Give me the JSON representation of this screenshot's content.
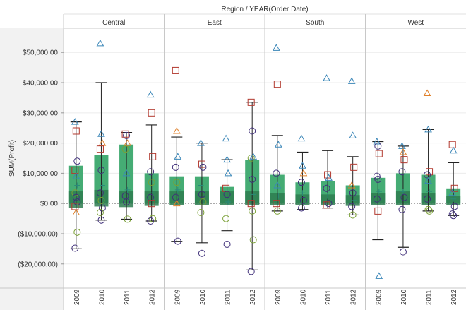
{
  "chart_data": {
    "type": "box-plot",
    "title": "Region / YEAR(Order Date)",
    "ylabel": "SUM(Profit)",
    "y_ticks": [
      {
        "value": 50000,
        "label": "$50,000.00"
      },
      {
        "value": 40000,
        "label": "$40,000.00"
      },
      {
        "value": 30000,
        "label": "$30,000.00"
      },
      {
        "value": 20000,
        "label": "$20,000.00"
      },
      {
        "value": 10000,
        "label": "$10,000.00"
      },
      {
        "value": 0,
        "label": "$0.00"
      },
      {
        "value": -10000,
        "label": "($10,000.00)"
      },
      {
        "value": -20000,
        "label": "($20,000.00)"
      }
    ],
    "ylim": [
      -28000,
      58000
    ],
    "colors": {
      "bar": "#3ba86d",
      "bar_band": "#2e7c50",
      "whisker": "#222222",
      "circle": "#40307a",
      "square": "#b2382e",
      "triangle_up": "#3a86b8",
      "triangle_down": "#e0802a",
      "diamond": "#7aa035",
      "plus": "#2a8a7a",
      "small_triangle": "#c07a3a"
    },
    "regions": [
      {
        "name": "Central",
        "years": [
          {
            "year": "2009",
            "bar": 12500,
            "band": [
              -1500,
              4000
            ],
            "whisker": [
              -15000,
              27000
            ],
            "marks": [
              [
                27000,
                "triangle_up"
              ],
              [
                24000,
                "square"
              ],
              [
                14000,
                "circle"
              ],
              [
                11000,
                "square"
              ],
              [
                9000,
                "triangle_up"
              ],
              [
                6000,
                "plus"
              ],
              [
                3500,
                "diamond"
              ],
              [
                2000,
                "circle"
              ],
              [
                500,
                "circle"
              ],
              [
                -1000,
                "square"
              ],
              [
                -3000,
                "triangle_down"
              ],
              [
                -9500,
                "diamond"
              ],
              [
                -14800,
                "circle"
              ]
            ]
          },
          {
            "year": "2010",
            "bar": 16000,
            "band": [
              -1000,
              4500
            ],
            "whisker": [
              -5500,
              40000
            ],
            "marks": [
              [
                53000,
                "triangle_up"
              ],
              [
                23000,
                "triangle_up"
              ],
              [
                20000,
                "triangle_down"
              ],
              [
                18000,
                "square"
              ],
              [
                11000,
                "circle"
              ],
              [
                6000,
                "plus"
              ],
              [
                3500,
                "circle"
              ],
              [
                1000,
                "diamond"
              ],
              [
                -1500,
                "circle"
              ],
              [
                -3000,
                "diamond"
              ],
              [
                -5500,
                "circle"
              ]
            ]
          },
          {
            "year": "2011",
            "bar": 19500,
            "band": [
              -1200,
              4000
            ],
            "whisker": [
              -5200,
              23500
            ],
            "marks": [
              [
                23000,
                "square"
              ],
              [
                22500,
                "circle"
              ],
              [
                20000,
                "triangle_down"
              ],
              [
                18000,
                "diamond"
              ],
              [
                10000,
                "triangle_up"
              ],
              [
                4500,
                "plus"
              ],
              [
                2500,
                "circle"
              ],
              [
                500,
                "circle"
              ],
              [
                -5200,
                "diamond"
              ]
            ]
          },
          {
            "year": "2012",
            "bar": 10000,
            "band": [
              -800,
              4000
            ],
            "whisker": [
              -5800,
              26000
            ],
            "marks": [
              [
                36000,
                "triangle_up"
              ],
              [
                30000,
                "square"
              ],
              [
                15500,
                "square"
              ],
              [
                10500,
                "circle"
              ],
              [
                7000,
                "diamond"
              ],
              [
                3500,
                "plus"
              ],
              [
                2000,
                "circle"
              ],
              [
                0,
                "square"
              ],
              [
                -5000,
                "diamond"
              ],
              [
                -5800,
                "circle"
              ]
            ]
          }
        ]
      },
      {
        "name": "East",
        "years": [
          {
            "year": "2009",
            "bar": 9000,
            "band": [
              -500,
              4000
            ],
            "whisker": [
              -12500,
              22000
            ],
            "marks": [
              [
                44000,
                "square"
              ],
              [
                24000,
                "triangle_down"
              ],
              [
                15500,
                "triangle_up"
              ],
              [
                12000,
                "circle"
              ],
              [
                7000,
                "diamond"
              ],
              [
                4500,
                "plus"
              ],
              [
                2000,
                "circle"
              ],
              [
                0,
                "triangle_down"
              ],
              [
                -12500,
                "circle"
              ]
            ]
          },
          {
            "year": "2010",
            "bar": 9000,
            "band": [
              -500,
              4000
            ],
            "whisker": [
              -13000,
              20000
            ],
            "marks": [
              [
                20000,
                "triangle_up"
              ],
              [
                13000,
                "square"
              ],
              [
                12000,
                "circle"
              ],
              [
                6000,
                "plus"
              ],
              [
                3000,
                "circle"
              ],
              [
                500,
                "diamond"
              ],
              [
                -3000,
                "diamond"
              ],
              [
                -16500,
                "circle"
              ]
            ]
          },
          {
            "year": "2011",
            "bar": 5500,
            "band": [
              -500,
              4000
            ],
            "whisker": [
              -9000,
              14500
            ],
            "marks": [
              [
                21500,
                "triangle_up"
              ],
              [
                14500,
                "triangle_up"
              ],
              [
                10000,
                "triangle_up"
              ],
              [
                5000,
                "square"
              ],
              [
                3000,
                "circle"
              ],
              [
                500,
                "plus"
              ],
              [
                -5000,
                "diamond"
              ],
              [
                -13500,
                "circle"
              ]
            ]
          },
          {
            "year": "2012",
            "bar": 14500,
            "band": [
              -500,
              4000
            ],
            "whisker": [
              -22000,
              33500
            ],
            "marks": [
              [
                33500,
                "square"
              ],
              [
                24000,
                "circle"
              ],
              [
                15500,
                "triangle_up"
              ],
              [
                15000,
                "diamond"
              ],
              [
                8000,
                "circle"
              ],
              [
                3000,
                "plus"
              ],
              [
                0,
                "square"
              ],
              [
                -2500,
                "diamond"
              ],
              [
                -12000,
                "diamond"
              ],
              [
                -22500,
                "circle"
              ]
            ]
          }
        ]
      },
      {
        "name": "South",
        "years": [
          {
            "year": "2009",
            "bar": 9500,
            "band": [
              -600,
              3500
            ],
            "whisker": [
              -2500,
              22500
            ],
            "marks": [
              [
                51500,
                "triangle_up"
              ],
              [
                39500,
                "square"
              ],
              [
                19500,
                "triangle_up"
              ],
              [
                10000,
                "circle"
              ],
              [
                6000,
                "triangle_up"
              ],
              [
                2500,
                "plus"
              ],
              [
                0,
                "square"
              ],
              [
                -2500,
                "diamond"
              ]
            ]
          },
          {
            "year": "2010",
            "bar": 7000,
            "band": [
              -500,
              3000
            ],
            "whisker": [
              -2000,
              17000
            ],
            "marks": [
              [
                21500,
                "triangle_up"
              ],
              [
                12500,
                "triangle_up"
              ],
              [
                10000,
                "triangle_down"
              ],
              [
                7000,
                "circle"
              ],
              [
                3500,
                "plus"
              ],
              [
                1000,
                "circle"
              ],
              [
                -1500,
                "circle"
              ]
            ]
          },
          {
            "year": "2011",
            "bar": 7500,
            "band": [
              -500,
              3000
            ],
            "whisker": [
              -1500,
              17500
            ],
            "marks": [
              [
                41500,
                "triangle_up"
              ],
              [
                9500,
                "square"
              ],
              [
                8500,
                "triangle_up"
              ],
              [
                5000,
                "circle"
              ],
              [
                2500,
                "plus"
              ],
              [
                0,
                "circle"
              ],
              [
                -500,
                "square"
              ]
            ]
          },
          {
            "year": "2012",
            "bar": 6000,
            "band": [
              -800,
              2800
            ],
            "whisker": [
              -3800,
              15500
            ],
            "marks": [
              [
                40500,
                "triangle_up"
              ],
              [
                22500,
                "triangle_up"
              ],
              [
                12000,
                "square"
              ],
              [
                6000,
                "triangle_down"
              ],
              [
                3500,
                "circle"
              ],
              [
                1000,
                "plus"
              ],
              [
                -1000,
                "circle"
              ],
              [
                -3800,
                "diamond"
              ]
            ]
          }
        ]
      },
      {
        "name": "West",
        "years": [
          {
            "year": "2009",
            "bar": 8500,
            "band": [
              -500,
              3500
            ],
            "whisker": [
              -12000,
              20500
            ],
            "marks": [
              [
                20500,
                "triangle_up"
              ],
              [
                19000,
                "circle"
              ],
              [
                16500,
                "square"
              ],
              [
                9000,
                "circle"
              ],
              [
                8000,
                "circle"
              ],
              [
                4000,
                "plus"
              ],
              [
                1500,
                "circle"
              ],
              [
                -2500,
                "square"
              ],
              [
                -24000,
                "triangle_up"
              ]
            ]
          },
          {
            "year": "2010",
            "bar": 10000,
            "band": [
              -500,
              4000
            ],
            "whisker": [
              -14500,
              19000
            ],
            "marks": [
              [
                19000,
                "triangle_up"
              ],
              [
                17000,
                "triangle_down"
              ],
              [
                14500,
                "square"
              ],
              [
                10500,
                "circle"
              ],
              [
                4000,
                "plus"
              ],
              [
                2000,
                "circle"
              ],
              [
                -2000,
                "circle"
              ],
              [
                -16000,
                "circle"
              ]
            ]
          },
          {
            "year": "2011",
            "bar": 9500,
            "band": [
              -600,
              3500
            ],
            "whisker": [
              -2500,
              24500
            ],
            "marks": [
              [
                36500,
                "triangle_down"
              ],
              [
                24500,
                "triangle_up"
              ],
              [
                10500,
                "square"
              ],
              [
                9500,
                "circle"
              ],
              [
                7500,
                "triangle_up"
              ],
              [
                4000,
                "plus"
              ],
              [
                1500,
                "circle"
              ],
              [
                -2000,
                "diamond"
              ],
              [
                -2500,
                "diamond"
              ]
            ]
          },
          {
            "year": "2012",
            "bar": 5000,
            "band": [
              -600,
              2500
            ],
            "whisker": [
              -4000,
              13500
            ],
            "marks": [
              [
                19500,
                "square"
              ],
              [
                17500,
                "triangle_up"
              ],
              [
                5000,
                "square"
              ],
              [
                3500,
                "triangle_up"
              ],
              [
                1500,
                "plus"
              ],
              [
                -1000,
                "circle"
              ],
              [
                -3500,
                "circle"
              ],
              [
                -4000,
                "circle"
              ]
            ]
          }
        ]
      }
    ]
  }
}
